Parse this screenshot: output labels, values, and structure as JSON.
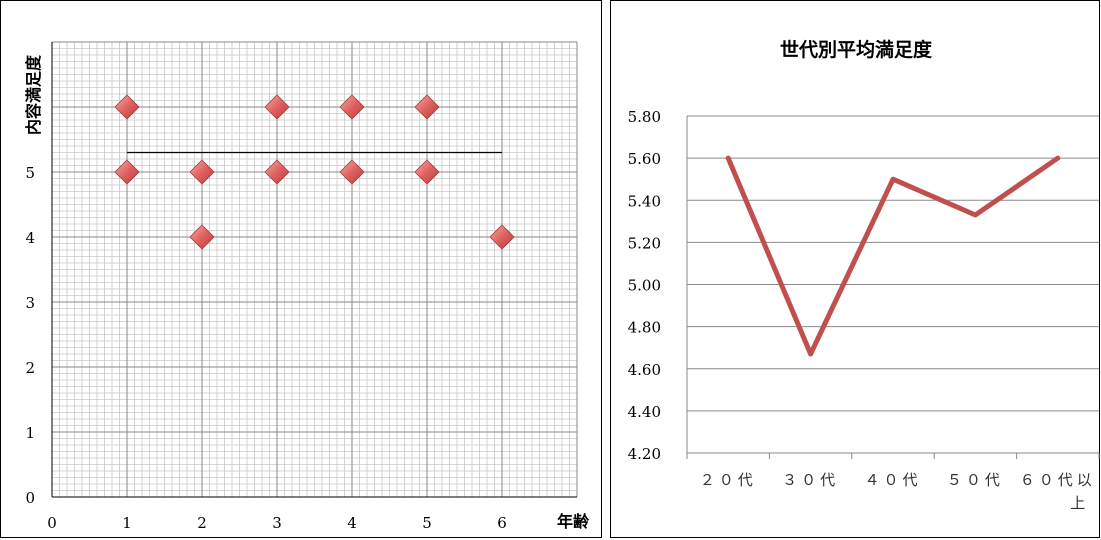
{
  "chart_data": [
    {
      "type": "scatter",
      "title": "",
      "xlabel": "年齢",
      "ylabel": "内容満足度",
      "xlim": [
        0,
        7
      ],
      "ylim": [
        0,
        7
      ],
      "x_ticks": [
        "0",
        "1",
        "2",
        "3",
        "4",
        "5",
        "6"
      ],
      "y_ticks": [
        "0",
        "1",
        "2",
        "3",
        "4",
        "5"
      ],
      "marker": "diamond",
      "marker_color": "#e06060",
      "points": [
        {
          "x": 1,
          "y": 6
        },
        {
          "x": 1,
          "y": 5
        },
        {
          "x": 2,
          "y": 5
        },
        {
          "x": 2,
          "y": 4
        },
        {
          "x": 3,
          "y": 6
        },
        {
          "x": 3,
          "y": 5
        },
        {
          "x": 4,
          "y": 6
        },
        {
          "x": 4,
          "y": 5
        },
        {
          "x": 5,
          "y": 6
        },
        {
          "x": 5,
          "y": 5
        },
        {
          "x": 6,
          "y": 4
        }
      ],
      "trend_line": {
        "x": [
          1,
          6
        ],
        "y": [
          5.3,
          5.3
        ]
      },
      "grid": true
    },
    {
      "type": "line",
      "title": "世代別平均満足度",
      "categories": [
        "２０代",
        "３０代",
        "４０代",
        "５０代",
        "６０代以上"
      ],
      "series": [
        {
          "values": [
            5.6,
            4.67,
            5.5,
            5.33,
            5.6
          ],
          "color": "#c0504d"
        }
      ],
      "ylim": [
        4.2,
        5.8
      ],
      "y_ticks": [
        "5.80",
        "5.60",
        "5.40",
        "5.20",
        "5.00",
        "4.80",
        "4.60",
        "4.40",
        "4.20"
      ],
      "grid": true
    }
  ]
}
